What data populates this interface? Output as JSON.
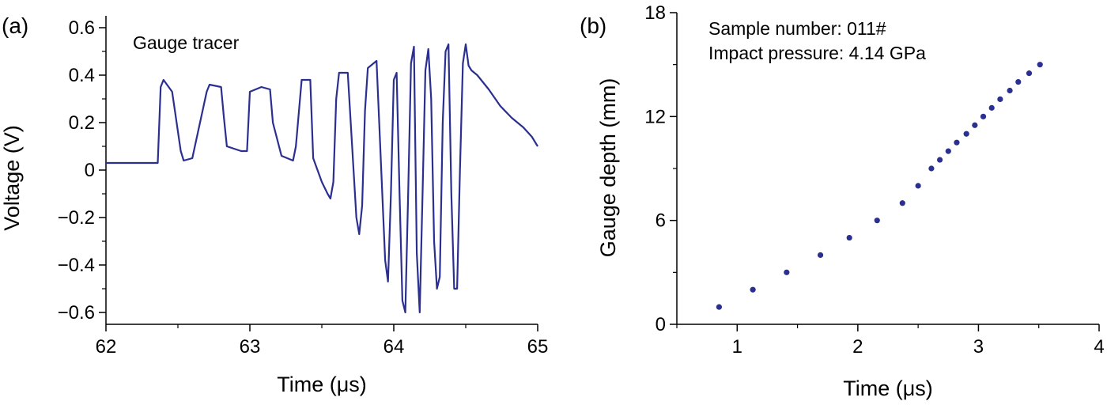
{
  "chart_data": [
    {
      "panel": "(a)",
      "type": "line",
      "annotation": "Gauge tracer",
      "xlabel": "Time (μs)",
      "ylabel": "Voltage (V)",
      "xlim": [
        62,
        65
      ],
      "ylim": [
        -0.65,
        0.65
      ],
      "xticks": [
        62,
        63,
        64,
        65
      ],
      "xtick_labels": [
        "62",
        "63",
        "64",
        "65"
      ],
      "yticks": [
        0.6,
        0.4,
        0.2,
        0,
        -0.2,
        -0.4,
        -0.6
      ],
      "ytick_labels": [
        "0.6",
        "0.4",
        "0.2",
        "0",
        "−0.2",
        "−0.4",
        "−0.6"
      ],
      "grid": false,
      "color": "#2b2f8f",
      "series": [
        {
          "x": [
            62.0,
            62.36,
            62.38,
            62.4,
            62.46,
            62.52,
            62.54,
            62.6,
            62.7,
            62.72,
            62.8,
            62.82,
            62.84,
            62.94,
            62.98,
            63.0,
            63.08,
            63.14,
            63.16,
            63.22,
            63.3,
            63.32,
            63.36,
            63.42,
            63.44,
            63.5,
            63.54,
            63.56,
            63.58,
            63.6,
            63.62,
            63.68,
            63.74,
            63.76,
            63.78,
            63.8,
            63.82,
            63.88,
            63.94,
            63.96,
            63.98,
            64.0,
            64.02,
            64.04,
            64.06,
            64.08,
            64.1,
            64.12,
            64.14,
            64.16,
            64.18,
            64.2,
            64.22,
            64.24,
            64.26,
            64.28,
            64.3,
            64.32,
            64.34,
            64.36,
            64.38,
            64.4,
            64.42,
            64.44,
            64.46,
            64.48,
            64.5,
            64.52,
            64.54,
            64.58,
            64.66,
            64.74,
            64.82,
            64.9,
            64.96,
            65.0
          ],
          "y": [
            0.03,
            0.03,
            0.35,
            0.38,
            0.33,
            0.08,
            0.04,
            0.05,
            0.33,
            0.36,
            0.35,
            0.22,
            0.1,
            0.08,
            0.08,
            0.33,
            0.35,
            0.34,
            0.2,
            0.06,
            0.04,
            0.1,
            0.38,
            0.38,
            0.05,
            -0.05,
            -0.1,
            -0.12,
            -0.05,
            0.3,
            0.41,
            0.41,
            -0.2,
            -0.27,
            -0.15,
            0.25,
            0.43,
            0.46,
            -0.38,
            -0.47,
            -0.1,
            0.38,
            0.41,
            -0.1,
            -0.55,
            -0.6,
            -0.1,
            0.45,
            0.52,
            -0.35,
            -0.6,
            -0.1,
            0.42,
            0.51,
            0.3,
            -0.3,
            -0.5,
            -0.45,
            0.2,
            0.5,
            0.53,
            -0.1,
            -0.5,
            -0.5,
            0.0,
            0.45,
            0.53,
            0.44,
            0.42,
            0.4,
            0.34,
            0.27,
            0.22,
            0.18,
            0.14,
            0.1
          ]
        }
      ]
    },
    {
      "panel": "(b)",
      "type": "scatter",
      "annotations": [
        "Sample number: 011#",
        "Impact pressure: 4.14 GPa"
      ],
      "xlabel": "Time (μs)",
      "ylabel": "Gauge depth (mm)",
      "xlim": [
        0.5,
        4
      ],
      "ylim": [
        0,
        18
      ],
      "xticks": [
        1,
        2,
        3,
        4
      ],
      "xtick_labels": [
        "1",
        "2",
        "3",
        "4"
      ],
      "yticks": [
        0,
        6,
        12,
        18
      ],
      "ytick_labels": [
        "0",
        "6",
        "12",
        "18"
      ],
      "grid": false,
      "color": "#2b2f8f",
      "series": [
        {
          "x": [
            0.85,
            1.13,
            1.41,
            1.69,
            1.93,
            2.16,
            2.37,
            2.5,
            2.61,
            2.68,
            2.75,
            2.82,
            2.9,
            2.97,
            3.04,
            3.11,
            3.18,
            3.26,
            3.33,
            3.42,
            3.51
          ],
          "y": [
            1,
            2,
            3,
            4,
            5,
            6,
            7,
            8,
            9,
            9.5,
            10,
            10.5,
            11,
            11.5,
            12,
            12.5,
            13,
            13.5,
            14,
            14.5,
            15
          ]
        }
      ]
    }
  ]
}
